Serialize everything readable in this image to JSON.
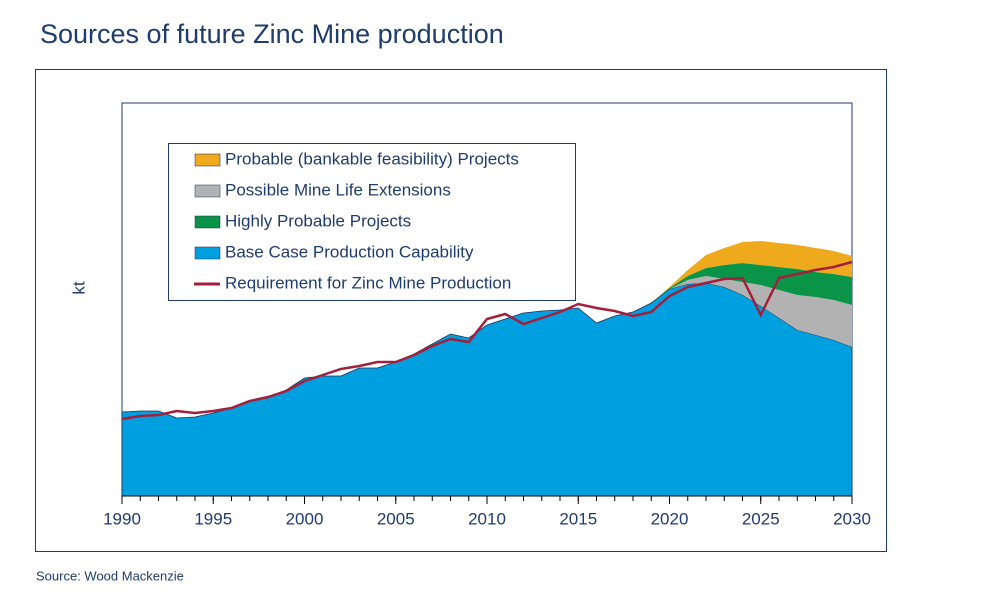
{
  "chart_data": {
    "type": "area",
    "title": "Sources of future Zinc Mine production",
    "ylabel": "kt",
    "source": "Source: Wood Mackenzie",
    "x": [
      1990,
      1991,
      1992,
      1993,
      1994,
      1995,
      1996,
      1997,
      1998,
      1999,
      2000,
      2001,
      2002,
      2003,
      2004,
      2005,
      2006,
      2007,
      2008,
      2009,
      2010,
      2011,
      2012,
      2013,
      2014,
      2015,
      2016,
      2017,
      2018,
      2019,
      2020,
      2021,
      2022,
      2023,
      2024,
      2025,
      2026,
      2027,
      2028,
      2029,
      2030
    ],
    "xlim": [
      1990,
      2030
    ],
    "xticks": [
      1990,
      1995,
      2000,
      2005,
      2010,
      2015,
      2020,
      2025,
      2030
    ],
    "ylim": [
      0,
      393
    ],
    "stacked": true,
    "legend": "upper left",
    "series": [
      {
        "name": "Base Case Production Capability",
        "color": "#009fe0",
        "type": "area",
        "values": [
          84,
          85,
          85,
          78,
          79,
          83,
          88,
          95,
          99,
          106,
          118,
          120,
          120,
          128,
          128,
          134,
          142,
          152,
          162,
          158,
          171,
          177,
          183,
          185,
          186,
          188,
          173,
          180,
          184,
          193,
          207,
          212,
          213,
          209,
          201,
          190,
          178,
          166,
          161,
          156,
          149
        ]
      },
      {
        "name": "Possible Mine Life Extensions",
        "color": "#b2b2b2",
        "type": "area",
        "values": [
          0,
          0,
          0,
          0,
          0,
          0,
          0,
          0,
          0,
          0,
          0,
          0,
          0,
          0,
          0,
          0,
          0,
          0,
          0,
          0,
          0,
          0,
          0,
          0,
          0,
          0,
          0,
          0,
          0,
          0,
          0,
          4,
          7,
          8,
          13,
          21,
          28,
          35,
          38,
          40,
          42
        ]
      },
      {
        "name": "Highly Probable Projects",
        "color": "#0a9447",
        "type": "area",
        "values": [
          0,
          0,
          0,
          0,
          0,
          0,
          0,
          0,
          0,
          0,
          0,
          0,
          0,
          0,
          0,
          0,
          0,
          0,
          0,
          0,
          0,
          0,
          0,
          0,
          0,
          0,
          0,
          0,
          0,
          0,
          1,
          4,
          8,
          14,
          19,
          20,
          23,
          26,
          25,
          26,
          28
        ]
      },
      {
        "name": "Probable (bankable feasibility) Projects",
        "color": "#eea91c",
        "type": "area",
        "values": [
          0,
          0,
          0,
          0,
          0,
          0,
          0,
          0,
          0,
          0,
          0,
          0,
          0,
          0,
          0,
          0,
          0,
          0,
          0,
          0,
          0,
          0,
          0,
          0,
          0,
          0,
          0,
          0,
          0,
          0,
          1,
          6,
          13,
          17,
          21,
          24,
          24,
          24,
          24,
          23,
          21
        ]
      },
      {
        "name": "Requirement for Zinc Mine Production",
        "color": "#a3203d",
        "type": "line",
        "values": [
          77,
          80,
          81,
          85,
          83,
          85,
          88,
          95,
          99,
          105,
          115,
          121,
          127,
          130,
          134,
          134,
          141,
          150,
          157,
          154,
          177,
          182,
          172,
          178,
          184,
          192,
          188,
          185,
          180,
          184,
          200,
          209,
          213,
          217,
          218,
          181,
          218,
          222,
          226,
          229,
          234
        ]
      }
    ],
    "legend_order": [
      3,
      1,
      2,
      0,
      4
    ]
  }
}
